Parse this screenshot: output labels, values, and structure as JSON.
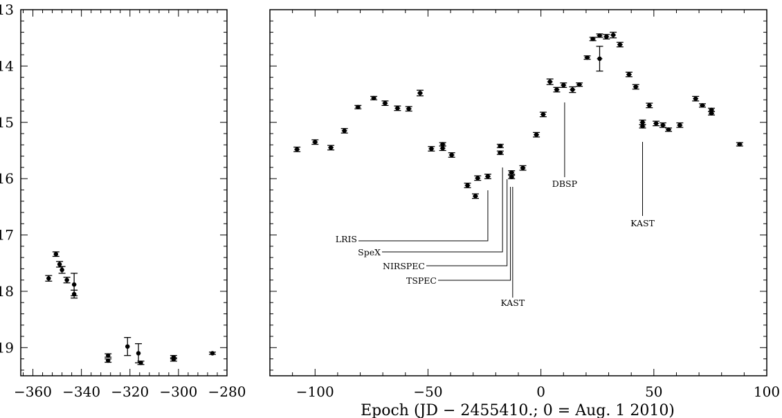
{
  "chart_data": [
    {
      "type": "scatter",
      "panel": "left",
      "xlim": [
        -365,
        -280
      ],
      "ylim": [
        19.5,
        13
      ],
      "y_inverted": true,
      "xticks": [
        -360,
        -340,
        -320,
        -300,
        -280
      ],
      "yticks": [
        13,
        14,
        15,
        16,
        17,
        18,
        19
      ],
      "xtick_labels": [
        "−360",
        "−340",
        "−320",
        "−300",
        "−280"
      ],
      "ytick_labels": [
        "13",
        "14",
        "15",
        "16",
        "17",
        "18",
        "19"
      ],
      "points": [
        {
          "x": -353.5,
          "y": 17.77,
          "xerr": 0.9,
          "yerr": 0.05
        },
        {
          "x": -350.5,
          "y": 17.34,
          "xerr": 0.9,
          "yerr": 0.04
        },
        {
          "x": -349.0,
          "y": 17.52,
          "xerr": 0.9,
          "yerr": 0.05
        },
        {
          "x": -348.0,
          "y": 17.62,
          "xerr": 0.9,
          "yerr": 0.06
        },
        {
          "x": -346.0,
          "y": 17.8,
          "xerr": 0.9,
          "yerr": 0.05
        },
        {
          "x": -343.0,
          "y": 17.88,
          "xerr": 0.9,
          "yerr": 0.2
        },
        {
          "x": -343.0,
          "y": 18.05,
          "xerr": 0.9,
          "yerr": 0.07
        },
        {
          "x": -329.0,
          "y": 19.14,
          "xerr": 0,
          "yerr": 0.03
        },
        {
          "x": -329.0,
          "y": 19.23,
          "xerr": 0,
          "yerr": 0.03
        },
        {
          "x": -321.0,
          "y": 18.98,
          "xerr": 0.9,
          "yerr": 0.16
        },
        {
          "x": -316.5,
          "y": 19.1,
          "xerr": 0.9,
          "yerr": 0.17
        },
        {
          "x": -315.5,
          "y": 19.27,
          "xerr": 0,
          "yerr": 0.03
        },
        {
          "x": -302.0,
          "y": 19.17,
          "xerr": 0,
          "yerr": 0.03
        },
        {
          "x": -302.0,
          "y": 19.21,
          "xerr": 0,
          "yerr": 0.03
        },
        {
          "x": -286.0,
          "y": 19.1,
          "xerr": 0,
          "yerr": 0.02
        }
      ]
    },
    {
      "type": "scatter",
      "panel": "right",
      "xlim": [
        -120,
        100
      ],
      "ylim": [
        19.5,
        13
      ],
      "y_inverted": true,
      "xticks": [
        -100,
        -50,
        0,
        50,
        100
      ],
      "yticks": [
        13,
        14,
        15,
        16,
        17,
        18,
        19
      ],
      "xtick_labels": [
        "−100",
        "−50",
        "0",
        "50",
        "100"
      ],
      "xlabel": "Epoch (JD − 2455410.; 0 = Aug. 1 2010)",
      "points": [
        {
          "x": -108,
          "y": 15.48,
          "xerr": 1.2,
          "yerr": 0.04
        },
        {
          "x": -100,
          "y": 15.35,
          "xerr": 1.2,
          "yerr": 0.04
        },
        {
          "x": -93,
          "y": 15.45,
          "xerr": 1.2,
          "yerr": 0.04
        },
        {
          "x": -87,
          "y": 15.15,
          "xerr": 1.2,
          "yerr": 0.04
        },
        {
          "x": -81,
          "y": 14.73,
          "xerr": 1.2,
          "yerr": 0.03
        },
        {
          "x": -74,
          "y": 14.57,
          "xerr": 1.2,
          "yerr": 0.03
        },
        {
          "x": -69,
          "y": 14.66,
          "xerr": 1.2,
          "yerr": 0.04
        },
        {
          "x": -63.5,
          "y": 14.75,
          "xerr": 1.2,
          "yerr": 0.04
        },
        {
          "x": -58.5,
          "y": 14.76,
          "xerr": 1.2,
          "yerr": 0.04
        },
        {
          "x": -53.5,
          "y": 14.48,
          "xerr": 1.2,
          "yerr": 0.05
        },
        {
          "x": -48.5,
          "y": 15.47,
          "xerr": 1.2,
          "yerr": 0.04
        },
        {
          "x": -43.5,
          "y": 15.46,
          "xerr": 1.2,
          "yerr": 0.04
        },
        {
          "x": -43.5,
          "y": 15.39,
          "xerr": 1.2,
          "yerr": 0.03
        },
        {
          "x": -39.5,
          "y": 15.58,
          "xerr": 1.2,
          "yerr": 0.04
        },
        {
          "x": -32.5,
          "y": 16.12,
          "xerr": 1.2,
          "yerr": 0.04
        },
        {
          "x": -29.0,
          "y": 16.31,
          "xerr": 1.2,
          "yerr": 0.04
        },
        {
          "x": -28.0,
          "y": 15.99,
          "xerr": 1.2,
          "yerr": 0.04
        },
        {
          "x": -23.5,
          "y": 15.96,
          "xerr": 1.2,
          "yerr": 0.04
        },
        {
          "x": -18.0,
          "y": 15.42,
          "xerr": 1.2,
          "yerr": 0.03
        },
        {
          "x": -18.0,
          "y": 15.54,
          "xerr": 1.2,
          "yerr": 0.03
        },
        {
          "x": -13.0,
          "y": 15.89,
          "xerr": 1.2,
          "yerr": 0.03
        },
        {
          "x": -13.0,
          "y": 15.97,
          "xerr": 1.2,
          "yerr": 0.03
        },
        {
          "x": -8.0,
          "y": 15.81,
          "xerr": 1.2,
          "yerr": 0.04
        },
        {
          "x": -2.0,
          "y": 15.22,
          "xerr": 1.2,
          "yerr": 0.04
        },
        {
          "x": 1.0,
          "y": 14.86,
          "xerr": 1.2,
          "yerr": 0.04
        },
        {
          "x": 4.0,
          "y": 14.28,
          "xerr": 1.2,
          "yerr": 0.05
        },
        {
          "x": 7.0,
          "y": 14.42,
          "xerr": 1.2,
          "yerr": 0.04
        },
        {
          "x": 10.0,
          "y": 14.34,
          "xerr": 1.2,
          "yerr": 0.04
        },
        {
          "x": 14.0,
          "y": 14.42,
          "xerr": 1.2,
          "yerr": 0.05
        },
        {
          "x": 17.0,
          "y": 14.33,
          "xerr": 1.2,
          "yerr": 0.03
        },
        {
          "x": 20.5,
          "y": 13.85,
          "xerr": 1.2,
          "yerr": 0.03
        },
        {
          "x": 23.0,
          "y": 13.52,
          "xerr": 1.2,
          "yerr": 0.03
        },
        {
          "x": 26.0,
          "y": 13.87,
          "xerr": 1.2,
          "yerr": 0.22
        },
        {
          "x": 26.0,
          "y": 13.46,
          "xerr": 1.2,
          "yerr": 0.03
        },
        {
          "x": 29.0,
          "y": 13.48,
          "xerr": 1.2,
          "yerr": 0.04
        },
        {
          "x": 32.0,
          "y": 13.45,
          "xerr": 1.2,
          "yerr": 0.05
        },
        {
          "x": 35.0,
          "y": 13.62,
          "xerr": 1.2,
          "yerr": 0.04
        },
        {
          "x": 39.0,
          "y": 14.15,
          "xerr": 1.2,
          "yerr": 0.04
        },
        {
          "x": 42.0,
          "y": 14.37,
          "xerr": 1.2,
          "yerr": 0.04
        },
        {
          "x": 45.0,
          "y": 15.0,
          "xerr": 1.2,
          "yerr": 0.04
        },
        {
          "x": 45.0,
          "y": 15.07,
          "xerr": 1.2,
          "yerr": 0.03
        },
        {
          "x": 48.0,
          "y": 14.7,
          "xerr": 1.2,
          "yerr": 0.04
        },
        {
          "x": 51.0,
          "y": 15.02,
          "xerr": 1.2,
          "yerr": 0.04
        },
        {
          "x": 54.0,
          "y": 15.05,
          "xerr": 1.2,
          "yerr": 0.04
        },
        {
          "x": 56.5,
          "y": 15.13,
          "xerr": 1.2,
          "yerr": 0.03
        },
        {
          "x": 61.5,
          "y": 15.05,
          "xerr": 1.2,
          "yerr": 0.04
        },
        {
          "x": 68.5,
          "y": 14.58,
          "xerr": 1.2,
          "yerr": 0.04
        },
        {
          "x": 71.5,
          "y": 14.7,
          "xerr": 1.2,
          "yerr": 0.03
        },
        {
          "x": 75.5,
          "y": 14.78,
          "xerr": 1.2,
          "yerr": 0.03
        },
        {
          "x": 75.5,
          "y": 14.84,
          "xerr": 1.2,
          "yerr": 0.03
        },
        {
          "x": 88.0,
          "y": 15.39,
          "xerr": 1.2,
          "yerr": 0.03
        }
      ],
      "annotations": [
        {
          "text": "LRIS",
          "epoch": -23.5
        },
        {
          "text": "SpeX",
          "epoch": -17.0
        },
        {
          "text": "NIRSPEC",
          "epoch": -15.0
        },
        {
          "text": "TSPEC",
          "epoch": -13.5
        },
        {
          "text": "KAST",
          "epoch": -12.5
        },
        {
          "text": "DBSP",
          "epoch": 10.5
        },
        {
          "text": "KAST",
          "epoch": 45.0
        }
      ]
    }
  ]
}
